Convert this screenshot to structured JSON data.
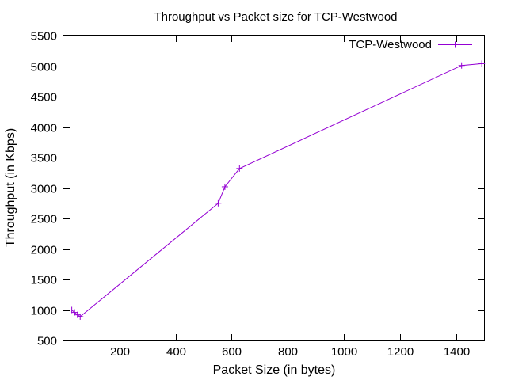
{
  "chart_data": {
    "type": "line",
    "title": "Throughput vs Packet size for TCP-Westwood",
    "xlabel": "Packet Size (in bytes)",
    "ylabel": "Throughput (in Kbps)",
    "xlim": [
      0,
      1500
    ],
    "ylim": [
      500,
      5500
    ],
    "x_ticks": [
      200,
      400,
      600,
      800,
      1000,
      1200,
      1400
    ],
    "y_ticks": [
      500,
      1000,
      1500,
      2000,
      2500,
      3000,
      3500,
      4000,
      4500,
      5000,
      5500
    ],
    "grid": false,
    "legend_position": "top-right",
    "series": [
      {
        "name": "TCP-Westwood",
        "color": "#9400d3",
        "marker": "plus",
        "x": [
          30,
          40,
          50,
          60,
          552,
          576,
          628,
          1420,
          1492
        ],
        "y": [
          1000,
          960,
          920,
          890,
          2750,
          3020,
          3320,
          5010,
          5040
        ]
      }
    ]
  }
}
